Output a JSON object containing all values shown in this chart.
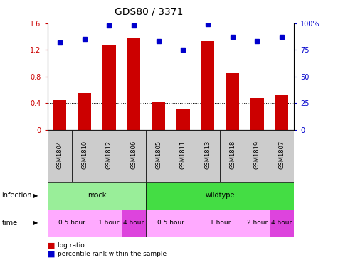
{
  "title": "GDS80 / 3371",
  "samples": [
    "GSM1804",
    "GSM1810",
    "GSM1812",
    "GSM1806",
    "GSM1805",
    "GSM1811",
    "GSM1813",
    "GSM1818",
    "GSM1819",
    "GSM1807"
  ],
  "log_ratio": [
    0.45,
    0.55,
    1.27,
    1.38,
    0.42,
    0.32,
    1.33,
    0.85,
    0.48,
    0.52
  ],
  "percentile": [
    82,
    85,
    98,
    98,
    83,
    75,
    99,
    87,
    83,
    87
  ],
  "ylim_left": [
    0,
    1.6
  ],
  "ylim_right": [
    0,
    100
  ],
  "yticks_left": [
    0,
    0.4,
    0.8,
    1.2,
    1.6
  ],
  "yticks_right": [
    0,
    25,
    50,
    75,
    100
  ],
  "ytick_labels_left": [
    "0",
    "0.4",
    "0.8",
    "1.2",
    "1.6"
  ],
  "ytick_labels_right": [
    "0",
    "25",
    "50",
    "75",
    "100%"
  ],
  "bar_color": "#cc0000",
  "dot_color": "#0000cc",
  "sample_bg": "#cccccc",
  "infection_mock_color": "#99ee99",
  "infection_wt_color": "#44dd44",
  "time_light_color": "#ffaaff",
  "time_dark_color": "#dd44dd",
  "infection_row": [
    {
      "label": "mock",
      "start": 0,
      "end": 4
    },
    {
      "label": "wildtype",
      "start": 4,
      "end": 10
    }
  ],
  "time_row": [
    {
      "label": "0.5 hour",
      "start": 0,
      "end": 2,
      "dark": false
    },
    {
      "label": "1 hour",
      "start": 2,
      "end": 3,
      "dark": false
    },
    {
      "label": "4 hour",
      "start": 3,
      "end": 4,
      "dark": true
    },
    {
      "label": "0.5 hour",
      "start": 4,
      "end": 6,
      "dark": false
    },
    {
      "label": "1 hour",
      "start": 6,
      "end": 8,
      "dark": false
    },
    {
      "label": "2 hour",
      "start": 8,
      "end": 9,
      "dark": false
    },
    {
      "label": "4 hour",
      "start": 9,
      "end": 10,
      "dark": true
    }
  ],
  "legend_items": [
    {
      "label": "log ratio",
      "color": "#cc0000"
    },
    {
      "label": "percentile rank within the sample",
      "color": "#0000cc"
    }
  ],
  "bg_color": "#ffffff",
  "fontsize_title": 10,
  "fontsize_ticks": 7,
  "fontsize_table": 7,
  "fontsize_labels": 7,
  "fontsize_sample": 6
}
